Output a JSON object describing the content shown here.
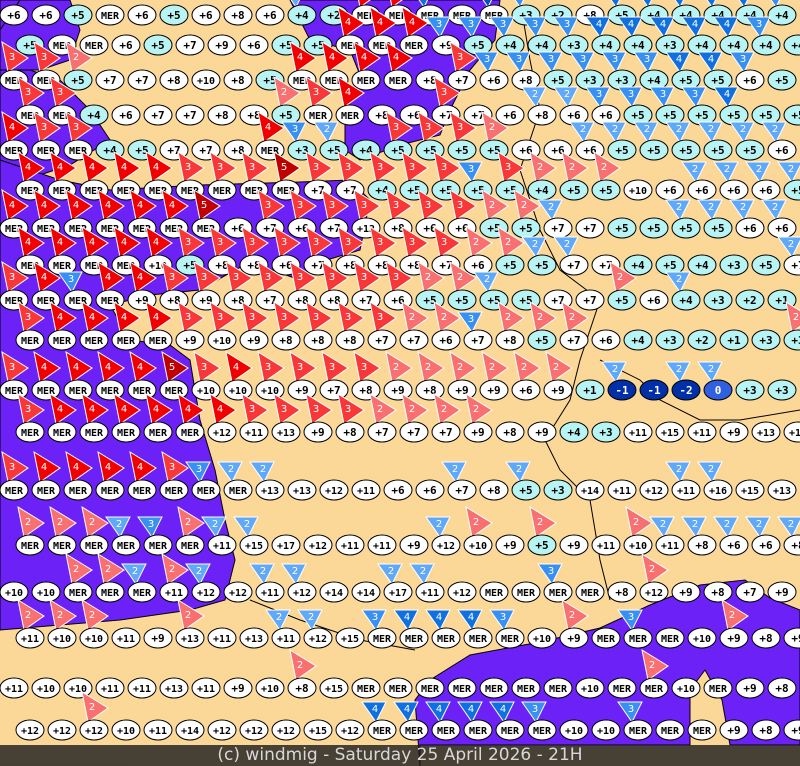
{
  "footer": {
    "credit": "(c) windmig - Saturday 25 April 2026 - 21H"
  },
  "colors": {
    "land": "#fcd898",
    "sea": "#6c22f6",
    "wind_red": {
      "2": "#f87070",
      "3": "#f83838",
      "4": "#f00000",
      "5": "#c00000"
    },
    "wind_blue": {
      "2": "#60a8f8",
      "3": "#3890f0",
      "4": "#1070e0",
      "5": "#0050c0"
    },
    "temp_warm": "#ffffff",
    "temp_mild": "#b8f4f4",
    "temp_zero": "#3060e0",
    "temp_negative": "#0030a8"
  },
  "sea_label": "MER",
  "rows": [
    "+6 +6 +5 MER +6 +5 +6 +8 +6 +4/b2 +2 MER/r4 MER/r4 MER/b4 MER MER/b5 +3/b3 +2 +8 +5/b4 +4/b4 +4/b4 +4/b4 +4/b4 +4/b3",
    "+5 MER MER +6 +5 +7 +9 +6 +5 +5 MER/r4 MER/r4 MER/r4 +9/b3 +5/b3 +4/b3 +4/b3 +3/b3 +4/b4 +4/b4 +3/b4 +4/b4 +4/b4 +4/b3 +4",
    "MER/r3 MER/r3 +5/r2 +7 +7 +8 +10 +8 +5 MER/r4 MER/r4 MER/r4 MER/r4 +8 +7/r3 +6/b3 +8/b3 +5/b3 +3/b3 +3/b3 +4/b3 +5/b4 +5/b4 +6/b3 +5",
    "MER/r3 MER/r3 +4 +6 +7 +7 +8 +8 +5/r2 MER/r3 MER/r4 +8 +6 +7/r3 +7 +6 +8/b2 +6/b2 +6/b3 +5/b3 +5/b3 +5/b3 +5/b4 +5 +5",
    "MER/r4 MER/r3 MER/r3 +4 +5 +7 +7 +8 MER/r4 +3/b3 +5/b2 +4 +5/r3 +5/r3 +5/r3 +5/r2 +6 +6 +6/b2 +5/b2 +5/b2 +5/b2 +5/b2 +5/b2 +6/b2",
    "MER/r4 MER/r4 MER/r4 MER/r4 MER/r4 MER/r3 MER/r3 MER/r3 MER/r5 +7/r3 +7/r3 +4/r3 +5/r3 +5/r3 +5/b3 +5/r3 +4/r2 +5/r2 +5/r2 +10 +6 +6/b2 +6/b2 +6/b2 +5/b2",
    "MER/r4 MER/r4 MER/r4 MER/r4 MER/r4 MER/r4 MER/r5 +6 +7/r3 +6/r3 +7/r3 +12/r3 +8/r3 +6/r3 +6/r3 +5/r2 +5/r2 +7/b2 +7 +5 +5 +5/b2 +5/b2 +6/b2 +6/b2",
    "MER/r4 MER/r4 MER/r4 MER/r4 +10/r4 +5/r3 +8/r3 +8/r3 +6/r3 +7/r3 +8/r3 +8/r3 +8/r3 +7/r3 +6/r2 +5/r2 +5/b2 +7/b2 +7 +4 +5 +4 +3 +5 +7/b2",
    "MER/r3 MER/r4 MER/b3 MER/r4 +9/r4 +8/r3 +9/r3 +8/r3 +7/r3 +8/r3 +8/r3 +7/r3 +6/r3 +5/r2 +5/r2 +5/b2 +5 +7 +7 +5/r2 +6 +4/b2 +3 +2 +1",
    "MER/r3 MER/r4 MER/r4 MER/r4 MER/r4 +9/r3 +10/r3 +9/r3 +8/r3 +8/r3 +8/r3 +7/r3 +7/r2 +6/r2 +7/b3 +8/r2 +5/r2 +7/r2 +6 +4 +3 +2 +1 +3 +3/r2",
    "MER/r3 MER/r4 MER/r4 MER/r4 MER/r4 MER/r5 +10/r3 +10/r4 +10/r3 +9/r3 +7/r3 +8/r3 +9/r2 +8/r2 +9/r2 +9/r2 +6/r2 +9/r2 +1 -1/b2 -1 -2/b2 0/b2 +3 +3",
    "MER/r3 MER/r4 MER/r4 MER/r4 MER/r4 MER/r4 +12/r4 +11/r3 +13/r3 +9/r3 +8/r3 +7/r2 +7/r2 +7/r2 +9/r2 +8 +9 +4 +3 +11 +15 +11 +9 +13 +13",
    "MER/r3 MER/r4 MER/r4 MER/r4 MER/r4 MER/r3 MER/b3 MER/b2 +13/b2 +13 +12 +11 +6 +6 +7/b2 +8 +5/b2 +3 +14 +11 +12 +11/b2 +16/b2 +15 +13",
    "MER/r2 MER/r2 MER/r2 MER/b2 MER/b3 MER/r2 +11/b2 +15/b2 +17 +12 +11 +11 +9 +12/b2 +10/r2 +9 +5/r2 +9 +11 +10/r2 +11/b2 +8/b2 +6/b2 +6/b2 +8/b2",
    "+10 +10 MER/r2 MER/r2 MER/b2 +11/r2 +12/b2 +12 +11/b2 +12/b2 +14 +14 +17/b2 +11/b2 +12 MER MER MER/b3 MER +8 +12/r2 +9 +8 +7 +9",
    "+11/r2 +10/r2 +10/r2 +11 +9 +13/r2 +11 +13 +11/b2 +12/b2 +15 MER/b3 MER/b4 MER/b4 MER/b4 MER/b3 +10 +9/r2 MER MER/b3 MER +10 +9/r2 +8 +9",
    "+11 +10 +10 +11 +11 +13 +11 +9 +10 +8/r2 +15 MER MER MER MER MER MER MER +10 MER MER/r2 +10 MER +9 +8",
    "+12 +12 +12/r2 +10 +11 +14 +12 +12 +12 +15 +12 MER/b4 MER/b4 MER/b4 MER/b4 MER/b4 MER/b3 +10 +10 MER/b3 MER MER +9 +8 +9"
  ]
}
